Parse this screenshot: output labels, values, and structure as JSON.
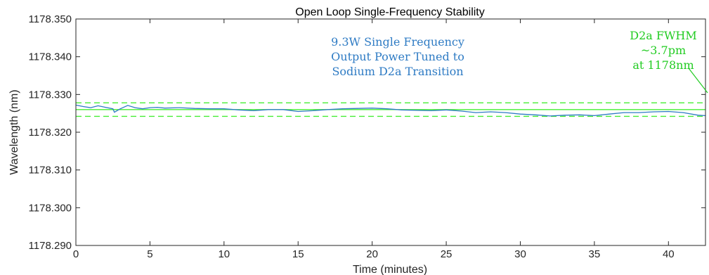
{
  "chart_data": {
    "type": "line",
    "title": "Open Loop Single-Frequency Stability",
    "xlabel": "Time (minutes)",
    "ylabel": "Wavelength (nm)",
    "xlim": [
      0,
      42.5
    ],
    "ylim": [
      1178.29,
      1178.35
    ],
    "x_ticks": [
      0,
      5,
      10,
      15,
      20,
      25,
      30,
      35,
      40
    ],
    "x_tick_labels": [
      "0",
      "5",
      "10",
      "15",
      "20",
      "25",
      "30",
      "35",
      "40"
    ],
    "y_ticks": [
      1178.29,
      1178.3,
      1178.31,
      1178.32,
      1178.33,
      1178.34,
      1178.35
    ],
    "y_tick_labels": [
      "1178.290",
      "1178.300",
      "1178.310",
      "1178.320",
      "1178.330",
      "1178.340",
      "1178.350"
    ],
    "grid": false,
    "series": [
      {
        "color": "#2e7bc4",
        "x": [
          0,
          0.5,
          1,
          1.5,
          2,
          2.5,
          2.6,
          3,
          3.5,
          4,
          4.5,
          5,
          5.5,
          6,
          7,
          8,
          9,
          10,
          11,
          12,
          13,
          14,
          15,
          16,
          17,
          18,
          19,
          20,
          21,
          22,
          23,
          24,
          25,
          26,
          27,
          28,
          29,
          30,
          31,
          32,
          33,
          34,
          35,
          36,
          37,
          38,
          39,
          40,
          41,
          42,
          42.5
        ],
        "y": [
          1178.3272,
          1178.3268,
          1178.3265,
          1178.327,
          1178.3266,
          1178.3262,
          1178.3253,
          1178.3262,
          1178.3271,
          1178.3265,
          1178.3262,
          1178.3265,
          1178.3266,
          1178.3264,
          1178.3265,
          1178.3263,
          1178.3262,
          1178.3262,
          1178.3259,
          1178.3257,
          1178.326,
          1178.326,
          1178.3255,
          1178.3257,
          1178.326,
          1178.3262,
          1178.3263,
          1178.3264,
          1178.3262,
          1178.3259,
          1178.3258,
          1178.3257,
          1178.3259,
          1178.3256,
          1178.3252,
          1178.3254,
          1178.3252,
          1178.3248,
          1178.3246,
          1178.3243,
          1178.3245,
          1178.3246,
          1178.3244,
          1178.3248,
          1178.3252,
          1178.3252,
          1178.3254,
          1178.3255,
          1178.3252,
          1178.3245,
          1178.3244
        ]
      }
    ],
    "reference_lines": [
      {
        "style": "solid",
        "y": 1178.326,
        "color": "#44ee33"
      },
      {
        "style": "dashed",
        "y": 1178.3278,
        "color": "#44ee33"
      },
      {
        "style": "dashed",
        "y": 1178.3242,
        "color": "#44ee33"
      }
    ],
    "annotations": [
      {
        "color": "#2e7bc4",
        "lines": [
          "9.3W Single Frequency",
          "Output Power Tuned to",
          "Sodium D2a Transition"
        ]
      },
      {
        "color": "#22cc22",
        "lines": [
          "D2a FWHM",
          "~3.7pm",
          "at 1178nm"
        ]
      }
    ]
  }
}
